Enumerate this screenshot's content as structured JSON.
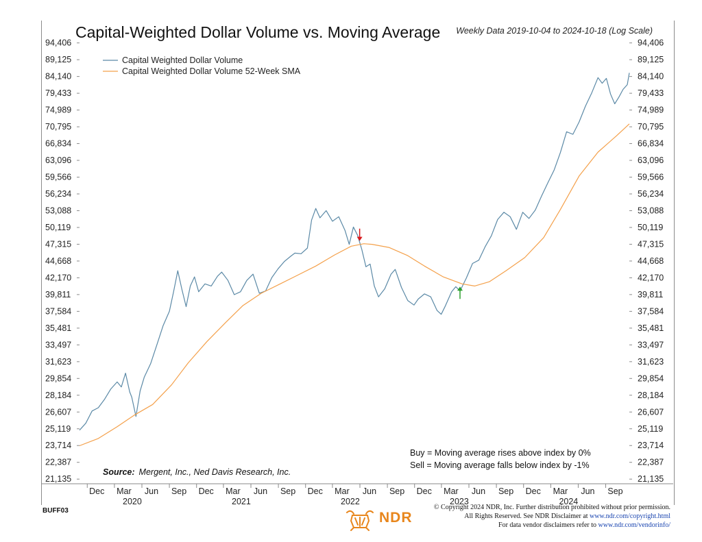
{
  "title": "Capital-Weighted Dollar Volume vs. Moving Average",
  "subtitle": "Weekly Data 2019-10-04 to 2024-10-18 (Log Scale)",
  "series_code": "BUFF03",
  "footer": {
    "line1": "© Copyright 2024 NDR, Inc. Further distribution prohibited without prior permission.",
    "line2_prefix": "All Rights Reserved. See NDR Disclaimer at ",
    "line2_link": "www.ndr.com/copyright.html",
    "line3_prefix": "For data vendor disclaimers refer to ",
    "line3_link": "www.ndr.com/vendorinfo/",
    "logo_text": "NDR"
  },
  "colors": {
    "volume": "#5b89a6",
    "sma": "#f4a04a",
    "sell_arrow": "#d7191c",
    "buy_arrow": "#2ca02c",
    "axis": "#8a8a8a"
  },
  "chart_data": {
    "type": "line",
    "scale": "log",
    "ylim": [
      20800,
      96800
    ],
    "xlim": [
      "2019-10-04",
      "2024-10-18"
    ],
    "y_ticks": [
      21135,
      22387,
      23714,
      25119,
      26607,
      28184,
      29854,
      31623,
      33497,
      35481,
      37584,
      39811,
      42170,
      44668,
      47315,
      50119,
      53088,
      56234,
      59566,
      63096,
      66834,
      70795,
      74989,
      79433,
      84140,
      89125,
      94406
    ],
    "y_tick_labels": [
      "21,135",
      "22,387",
      "23,714",
      "25,119",
      "26,607",
      "28,184",
      "29,854",
      "31,623",
      "33,497",
      "35,481",
      "37,584",
      "39,811",
      "42,170",
      "44,668",
      "47,315",
      "50,119",
      "53,088",
      "56,234",
      "59,566",
      "63,096",
      "66,834",
      "70,795",
      "74,989",
      "79,433",
      "84,140",
      "89,125",
      "94,406"
    ],
    "x_ticks": [
      {
        "date": "2019-12-01",
        "label": "Dec"
      },
      {
        "date": "2020-03-01",
        "label": "Mar",
        "year": "2020"
      },
      {
        "date": "2020-06-01",
        "label": "Jun"
      },
      {
        "date": "2020-09-01",
        "label": "Sep"
      },
      {
        "date": "2020-12-01",
        "label": "Dec"
      },
      {
        "date": "2021-03-01",
        "label": "Mar",
        "year": "2021"
      },
      {
        "date": "2021-06-01",
        "label": "Jun"
      },
      {
        "date": "2021-09-01",
        "label": "Sep"
      },
      {
        "date": "2021-12-01",
        "label": "Dec"
      },
      {
        "date": "2022-03-01",
        "label": "Mar",
        "year": "2022"
      },
      {
        "date": "2022-06-01",
        "label": "Jun"
      },
      {
        "date": "2022-09-01",
        "label": "Sep"
      },
      {
        "date": "2022-12-01",
        "label": "Dec"
      },
      {
        "date": "2023-03-01",
        "label": "Mar",
        "year": "2023"
      },
      {
        "date": "2023-06-01",
        "label": "Jun"
      },
      {
        "date": "2023-09-01",
        "label": "Sep"
      },
      {
        "date": "2023-12-01",
        "label": "Dec"
      },
      {
        "date": "2024-03-01",
        "label": "Mar",
        "year": "2024"
      },
      {
        "date": "2024-06-01",
        "label": "Jun"
      },
      {
        "date": "2024-09-01",
        "label": "Sep"
      }
    ],
    "legend": [
      "Capital Weighted Dollar Volume",
      "Capital Weighted Dollar Volume 52-Week SMA"
    ],
    "legend_position": "top-left",
    "series": [
      {
        "name": "Capital Weighted Dollar Volume",
        "points": [
          [
            "2019-10-04",
            25000
          ],
          [
            "2019-10-25",
            25600
          ],
          [
            "2019-11-15",
            26700
          ],
          [
            "2019-12-06",
            27000
          ],
          [
            "2019-12-27",
            27800
          ],
          [
            "2020-01-17",
            28800
          ],
          [
            "2020-02-07",
            29500
          ],
          [
            "2020-02-21",
            29000
          ],
          [
            "2020-03-06",
            30400
          ],
          [
            "2020-03-20",
            28500
          ],
          [
            "2020-03-27",
            28000
          ],
          [
            "2020-04-10",
            26200
          ],
          [
            "2020-04-24",
            28600
          ],
          [
            "2020-05-08",
            30000
          ],
          [
            "2020-05-29",
            31400
          ],
          [
            "2020-06-19",
            33500
          ],
          [
            "2020-07-10",
            35800
          ],
          [
            "2020-07-31",
            37600
          ],
          [
            "2020-08-14",
            40200
          ],
          [
            "2020-08-28",
            43200
          ],
          [
            "2020-09-11",
            40500
          ],
          [
            "2020-09-25",
            38200
          ],
          [
            "2020-10-09",
            41000
          ],
          [
            "2020-10-23",
            42300
          ],
          [
            "2020-11-06",
            40200
          ],
          [
            "2020-11-27",
            41300
          ],
          [
            "2020-12-18",
            41000
          ],
          [
            "2021-01-08",
            42400
          ],
          [
            "2021-01-22",
            43000
          ],
          [
            "2021-02-12",
            41800
          ],
          [
            "2021-03-05",
            39800
          ],
          [
            "2021-03-26",
            40200
          ],
          [
            "2021-04-16",
            41800
          ],
          [
            "2021-05-07",
            42700
          ],
          [
            "2021-05-28",
            40000
          ],
          [
            "2021-06-18",
            40300
          ],
          [
            "2021-07-09",
            42200
          ],
          [
            "2021-07-30",
            43500
          ],
          [
            "2021-08-20",
            44600
          ],
          [
            "2021-09-10",
            45400
          ],
          [
            "2021-09-24",
            45900
          ],
          [
            "2021-10-15",
            45800
          ],
          [
            "2021-11-05",
            46700
          ],
          [
            "2021-11-19",
            51400
          ],
          [
            "2021-12-03",
            53500
          ],
          [
            "2021-12-17",
            51800
          ],
          [
            "2022-01-07",
            53100
          ],
          [
            "2022-01-28",
            51200
          ],
          [
            "2022-02-18",
            52000
          ],
          [
            "2022-03-11",
            49600
          ],
          [
            "2022-03-25",
            47300
          ],
          [
            "2022-04-08",
            50200
          ],
          [
            "2022-04-22",
            48800
          ],
          [
            "2022-05-06",
            46500
          ],
          [
            "2022-05-20",
            43800
          ],
          [
            "2022-06-03",
            44200
          ],
          [
            "2022-06-17",
            41000
          ],
          [
            "2022-07-01",
            39500
          ],
          [
            "2022-07-22",
            40600
          ],
          [
            "2022-08-12",
            42700
          ],
          [
            "2022-08-26",
            43400
          ],
          [
            "2022-09-16",
            40800
          ],
          [
            "2022-10-07",
            39000
          ],
          [
            "2022-10-28",
            38400
          ],
          [
            "2022-11-11",
            39200
          ],
          [
            "2022-12-02",
            39900
          ],
          [
            "2022-12-23",
            39500
          ],
          [
            "2023-01-13",
            37700
          ],
          [
            "2023-01-27",
            37200
          ],
          [
            "2023-02-10",
            38300
          ],
          [
            "2023-03-03",
            40200
          ],
          [
            "2023-03-17",
            40900
          ],
          [
            "2023-03-31",
            40300
          ],
          [
            "2023-04-21",
            42100
          ],
          [
            "2023-05-12",
            44300
          ],
          [
            "2023-06-02",
            44800
          ],
          [
            "2023-06-23",
            46900
          ],
          [
            "2023-07-14",
            48700
          ],
          [
            "2023-08-04",
            51500
          ],
          [
            "2023-08-25",
            52800
          ],
          [
            "2023-09-15",
            52000
          ],
          [
            "2023-10-06",
            49800
          ],
          [
            "2023-10-27",
            52800
          ],
          [
            "2023-11-17",
            51700
          ],
          [
            "2023-12-08",
            53200
          ],
          [
            "2023-12-29",
            55800
          ],
          [
            "2024-01-19",
            58400
          ],
          [
            "2024-02-09",
            61000
          ],
          [
            "2024-03-01",
            64800
          ],
          [
            "2024-03-22",
            69600
          ],
          [
            "2024-04-12",
            69000
          ],
          [
            "2024-05-03",
            72000
          ],
          [
            "2024-05-24",
            76000
          ],
          [
            "2024-06-14",
            79500
          ],
          [
            "2024-07-05",
            83800
          ],
          [
            "2024-07-19",
            82200
          ],
          [
            "2024-08-02",
            83600
          ],
          [
            "2024-08-16",
            79200
          ],
          [
            "2024-08-30",
            76600
          ],
          [
            "2024-09-13",
            78400
          ],
          [
            "2024-09-27",
            80500
          ],
          [
            "2024-10-11",
            81800
          ],
          [
            "2024-10-18",
            85200
          ]
        ]
      },
      {
        "name": "Capital Weighted Dollar Volume 52-Week SMA",
        "points": [
          [
            "2019-10-04",
            23700
          ],
          [
            "2019-12-06",
            24300
          ],
          [
            "2020-02-07",
            25300
          ],
          [
            "2020-04-03",
            26300
          ],
          [
            "2020-06-05",
            27300
          ],
          [
            "2020-08-07",
            29200
          ],
          [
            "2020-10-02",
            31500
          ],
          [
            "2020-12-04",
            33900
          ],
          [
            "2021-02-05",
            36200
          ],
          [
            "2021-04-02",
            38300
          ],
          [
            "2021-06-04",
            40000
          ],
          [
            "2021-08-06",
            41300
          ],
          [
            "2021-10-01",
            42500
          ],
          [
            "2021-12-03",
            43900
          ],
          [
            "2022-02-04",
            45600
          ],
          [
            "2022-04-01",
            47000
          ],
          [
            "2022-05-13",
            47400
          ],
          [
            "2022-06-10",
            47300
          ],
          [
            "2022-08-05",
            46800
          ],
          [
            "2022-10-07",
            45500
          ],
          [
            "2022-12-02",
            43900
          ],
          [
            "2023-02-03",
            42300
          ],
          [
            "2023-04-07",
            41300
          ],
          [
            "2023-05-19",
            41000
          ],
          [
            "2023-07-07",
            41600
          ],
          [
            "2023-09-01",
            43200
          ],
          [
            "2023-11-03",
            45200
          ],
          [
            "2024-01-05",
            48400
          ],
          [
            "2024-03-01",
            53300
          ],
          [
            "2024-05-03",
            59800
          ],
          [
            "2024-07-05",
            64900
          ],
          [
            "2024-09-06",
            68700
          ],
          [
            "2024-10-18",
            71500
          ]
        ]
      }
    ],
    "signals": [
      {
        "type": "sell",
        "date": "2022-04-29"
      },
      {
        "type": "buy",
        "date": "2023-03-31"
      }
    ],
    "annotations": {
      "buy_rule": "Buy = Moving average rises above index by 0%",
      "sell_rule": "Sell = Moving average falls below index by -1%",
      "source_label": "Source:",
      "source_text": "Mergent, Inc., Ned Davis Research, Inc."
    }
  }
}
